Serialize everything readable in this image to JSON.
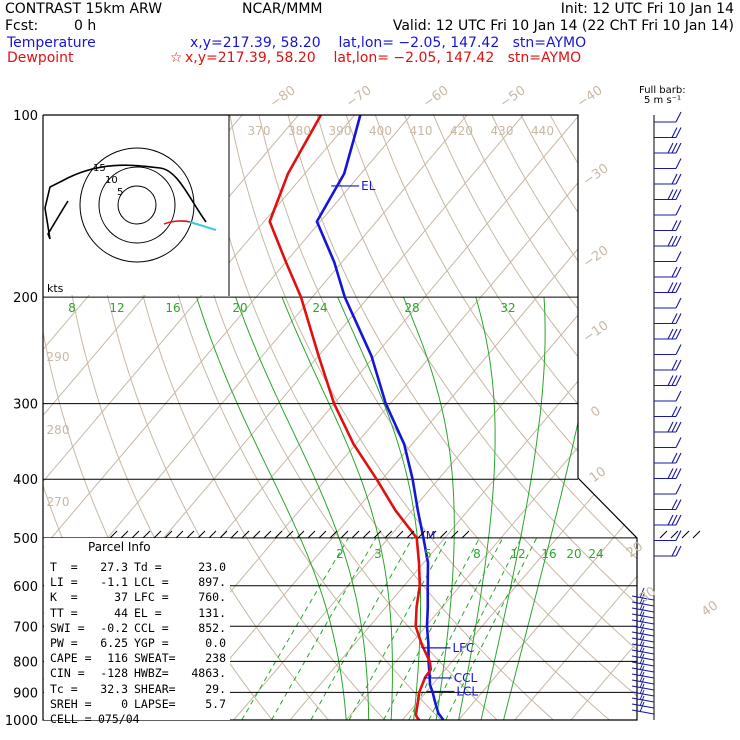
{
  "header": {
    "model": "CONTRAST 15km ARW",
    "org": "NCAR/MMM",
    "init": "Init: 12 UTC Fri 10 Jan 14",
    "fcst_label": "Fcst:",
    "fcst_value": "0 h",
    "valid": "Valid: 12 UTC Fri 10 Jan 14 (22 ChT Fri 10 Jan 14)",
    "temperature_label": "Temperature",
    "temperature_info": "x,y=217.39, 58.20    lat,lon= −2.05, 147.42   stn=AYMO",
    "dewpoint_label": "Dewpoint",
    "dewpoint_info": "x,y=217.39, 58.20    lat,lon= −2.05, 147.42   stn=AYMO",
    "barb_legend_1": "Full barb:",
    "barb_legend_2": "5 m s⁻¹"
  },
  "colors": {
    "temperature": "#1515d8",
    "dewpoint": "#e01010",
    "isotherm": "#c8b8a4",
    "dry_adiabat": "#c8b8a4",
    "mixing_ratio": "#2aa62a",
    "frame": "#000000",
    "hodo_hot": "#e01010",
    "hodo_cyan": "#40c8e0"
  },
  "chart_data": {
    "type": "line",
    "title": "",
    "xlabel": "",
    "ylabel": "",
    "pressure_labels": [
      "100",
      "200",
      "300",
      "400",
      "500",
      "600",
      "700",
      "800",
      "900",
      "1000"
    ],
    "pressure_levels": [
      100,
      200,
      300,
      400,
      500,
      600,
      700,
      800,
      900,
      1000
    ],
    "isotherm_labels": [
      "−80",
      "−70",
      "−60",
      "−50",
      "−40",
      "−30",
      "−20",
      "−10",
      "0",
      "10",
      "20",
      "30",
      "40"
    ],
    "theta_top_labels": [
      "370",
      "380",
      "390",
      "400",
      "410",
      "420",
      "430",
      "440"
    ],
    "theta_side_labels": [
      "290",
      "280",
      "270"
    ],
    "mixing_upper_labels": [
      "8",
      "12",
      "16",
      "20",
      "24",
      "28",
      "32"
    ],
    "mixing_lower_labels": [
      "2",
      "3",
      "5",
      "8",
      "12",
      "16",
      "20",
      "24"
    ],
    "series": [
      {
        "name": "Temperature",
        "points": [
          [
            1000,
            27.3
          ],
          [
            975,
            25.4
          ],
          [
            950,
            24.0
          ],
          [
            925,
            22.6
          ],
          [
            900,
            21.2
          ],
          [
            875,
            19.6
          ],
          [
            850,
            18.4
          ],
          [
            800,
            15.8
          ],
          [
            750,
            13.2
          ],
          [
            700,
            10.2
          ],
          [
            650,
            7.4
          ],
          [
            600,
            4.2
          ],
          [
            550,
            0.8
          ],
          [
            500,
            -3.8
          ],
          [
            450,
            -9.0
          ],
          [
            400,
            -14.6
          ],
          [
            350,
            -21.4
          ],
          [
            300,
            -30.8
          ],
          [
            250,
            -40.6
          ],
          [
            200,
            -54.2
          ],
          [
            175,
            -61.4
          ],
          [
            150,
            -70.6
          ],
          [
            125,
            -73.0
          ],
          [
            110,
            -76.4
          ],
          [
            100,
            -79.0
          ]
        ]
      },
      {
        "name": "Dewpoint",
        "points": [
          [
            1000,
            23.0
          ],
          [
            990,
            22.2
          ],
          [
            980,
            21.6
          ],
          [
            950,
            20.6
          ],
          [
            900,
            18.8
          ],
          [
            850,
            17.6
          ],
          [
            825,
            17.4
          ],
          [
            800,
            16.0
          ],
          [
            750,
            12.0
          ],
          [
            700,
            8.2
          ],
          [
            650,
            5.4
          ],
          [
            600,
            2.8
          ],
          [
            550,
            -0.8
          ],
          [
            500,
            -5.0
          ],
          [
            450,
            -13.0
          ],
          [
            400,
            -21.0
          ],
          [
            350,
            -30.4
          ],
          [
            300,
            -40.0
          ],
          [
            250,
            -50.0
          ],
          [
            200,
            -62.0
          ],
          [
            175,
            -70.0
          ],
          [
            150,
            -79.0
          ],
          [
            125,
            -83.0
          ],
          [
            100,
            -86.0
          ]
        ]
      }
    ],
    "level_markers": [
      {
        "label": "EL",
        "p": 131
      },
      {
        "label": "M",
        "p": 495
      },
      {
        "label": "LFC",
        "p": 760
      },
      {
        "label": "CCL",
        "p": 852
      },
      {
        "label": "LCL",
        "p": 897
      }
    ],
    "hodograph": {
      "units_label": "kts",
      "ring_labels": [
        "5",
        "10",
        "15"
      ]
    }
  },
  "parcel_info": {
    "title": "Parcel Info",
    "rows": [
      [
        "T  =",
        "27.3",
        "Td =",
        "23.0"
      ],
      [
        "LI =",
        "-1.1",
        "LCL =",
        "897."
      ],
      [
        "K  =",
        "37",
        "LFC =",
        "760."
      ],
      [
        "TT =",
        "44",
        "EL =",
        "131."
      ],
      [
        "SWI =",
        "-0.2",
        "CCL =",
        "852."
      ],
      [
        "PW =",
        "6.25",
        "YGP =",
        "0.0"
      ],
      [
        "CAPE =",
        "116",
        "SWEAT=",
        "238"
      ],
      [
        "CIN =",
        "-128",
        "HWBZ=",
        "4863."
      ],
      [
        "Tc =",
        "32.3",
        "SHEAR=",
        "29."
      ],
      [
        "SREH =",
        "0",
        "LAPSE=",
        "5.7"
      ],
      [
        "CELL =",
        "075/04",
        "",
        ""
      ]
    ]
  }
}
